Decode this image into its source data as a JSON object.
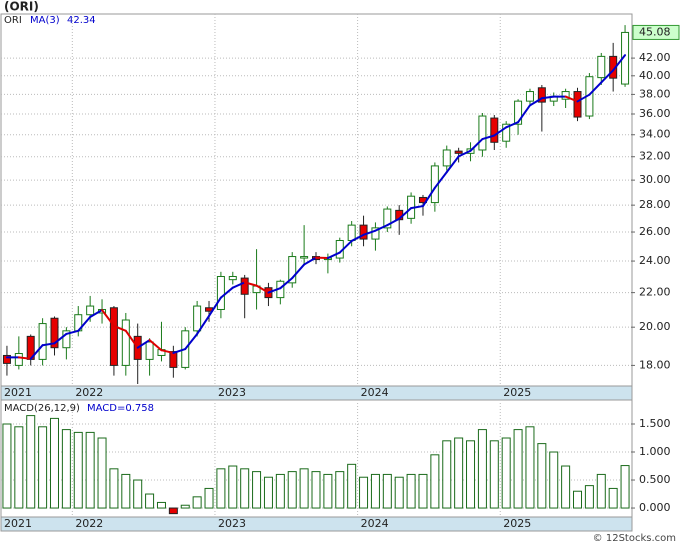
{
  "chart_data": [
    {
      "type": "candlestick",
      "title": "(ORI)",
      "ticker": "ORI",
      "categories": [
        "2021",
        null,
        null,
        null,
        null,
        null,
        "2022",
        null,
        null,
        null,
        null,
        null,
        null,
        null,
        null,
        null,
        null,
        null,
        "2023",
        null,
        null,
        null,
        null,
        null,
        null,
        null,
        null,
        null,
        null,
        null,
        "2024",
        null,
        null,
        null,
        null,
        null,
        null,
        null,
        null,
        null,
        null,
        null,
        "2025",
        null,
        null,
        null,
        null,
        null,
        null,
        null,
        null,
        null,
        null
      ],
      "open": [
        18.5,
        18.0,
        19.5,
        18.3,
        20.5,
        18.9,
        19.8,
        20.7,
        20.8,
        21.1,
        18.0,
        19.5,
        18.3,
        18.5,
        18.7,
        17.9,
        19.8,
        21.1,
        21.0,
        22.8,
        22.9,
        22.0,
        22.3,
        21.7,
        22.6,
        24.2,
        24.3,
        24.1,
        24.2,
        25.4,
        26.5,
        25.5,
        26.3,
        27.6,
        27.0,
        28.6,
        28.2,
        31.2,
        32.5,
        32.3,
        32.6,
        35.6,
        33.4,
        35.0,
        37.3,
        38.7,
        37.3,
        37.5,
        38.3,
        35.8,
        39.8,
        42.2,
        39.1
      ],
      "high": [
        19.0,
        19.5,
        19.6,
        20.5,
        20.6,
        20.0,
        21.2,
        21.8,
        21.6,
        21.2,
        20.8,
        20.2,
        19.4,
        20.3,
        19.0,
        20.0,
        21.5,
        21.5,
        23.3,
        23.3,
        23.1,
        24.8,
        22.6,
        22.8,
        24.6,
        26.5,
        24.6,
        24.5,
        25.6,
        26.8,
        27.2,
        26.7,
        27.9,
        28.0,
        29.0,
        28.8,
        31.5,
        33.0,
        32.8,
        33.3,
        36.1,
        35.9,
        35.3,
        37.5,
        38.6,
        39.0,
        38.2,
        38.6,
        38.7,
        40.3,
        42.6,
        43.8,
        46.0
      ],
      "low": [
        17.5,
        17.8,
        18.0,
        18.0,
        18.5,
        18.3,
        19.5,
        20.3,
        20.2,
        17.5,
        17.5,
        17.1,
        17.5,
        18.2,
        17.4,
        17.8,
        19.5,
        20.3,
        20.5,
        22.5,
        20.5,
        21.0,
        21.2,
        21.3,
        22.3,
        23.8,
        23.8,
        23.2,
        23.9,
        25.0,
        25.0,
        24.7,
        26.0,
        25.8,
        26.6,
        27.2,
        27.5,
        30.8,
        31.5,
        31.6,
        32.0,
        32.6,
        32.8,
        34.0,
        37.0,
        34.3,
        36.8,
        36.6,
        35.3,
        35.5,
        39.0,
        38.3,
        38.8
      ],
      "close": [
        18.1,
        18.6,
        18.3,
        20.2,
        18.9,
        19.8,
        20.7,
        21.2,
        21.0,
        18.0,
        20.4,
        18.3,
        19.2,
        18.8,
        17.9,
        19.8,
        21.2,
        20.9,
        23.0,
        23.0,
        21.9,
        22.4,
        21.7,
        22.7,
        24.3,
        24.3,
        24.1,
        24.2,
        25.4,
        26.5,
        25.5,
        26.3,
        27.7,
        26.9,
        28.7,
        28.2,
        31.2,
        32.6,
        32.3,
        32.7,
        35.8,
        33.3,
        35.0,
        37.3,
        38.3,
        37.2,
        37.8,
        38.3,
        35.7,
        39.9,
        42.2,
        39.74,
        45.08
      ],
      "up_color": "#1a7a1a",
      "down_color": "#e60000",
      "overlay": {
        "name": "MA(3)",
        "color": "#0000cc",
        "down_color": "#dd0000",
        "values": [
          18.4,
          18.4,
          18.33,
          19.03,
          19.13,
          19.63,
          19.8,
          20.57,
          20.97,
          20.07,
          19.8,
          18.9,
          19.3,
          18.77,
          18.63,
          18.83,
          19.63,
          20.63,
          21.7,
          22.3,
          22.63,
          22.43,
          22.0,
          22.27,
          22.9,
          23.77,
          24.23,
          24.2,
          24.57,
          25.37,
          25.8,
          26.1,
          26.5,
          26.97,
          27.77,
          27.93,
          29.37,
          30.67,
          32.03,
          32.53,
          33.6,
          33.93,
          34.7,
          35.2,
          36.87,
          37.6,
          37.77,
          37.77,
          37.27,
          37.97,
          39.27,
          40.61,
          42.34
        ]
      },
      "ylim": [
        17.1,
        47.3
      ],
      "log_scale": true,
      "grid": true,
      "yticks": [
        {
          "value": 18,
          "label": "18.00"
        },
        {
          "value": 20,
          "label": "20.00"
        },
        {
          "value": 22,
          "label": "22.00"
        },
        {
          "value": 24,
          "label": "24.00"
        },
        {
          "value": 26,
          "label": "26.00"
        },
        {
          "value": 28,
          "label": "28.00"
        },
        {
          "value": 30,
          "label": "30.00"
        },
        {
          "value": 32,
          "label": "32.00"
        },
        {
          "value": 34,
          "label": "34.00"
        },
        {
          "value": 36,
          "label": "36.00"
        },
        {
          "value": 38,
          "label": "38.00"
        },
        {
          "value": 40,
          "label": "40.00"
        },
        {
          "value": 42,
          "label": "42.00"
        }
      ]
    },
    {
      "type": "bar",
      "title": "MACD(26,12,9)",
      "value_prefix": "MACD=",
      "categories": [
        "2021",
        null,
        null,
        null,
        null,
        null,
        "2022",
        null,
        null,
        null,
        null,
        null,
        null,
        null,
        null,
        null,
        null,
        null,
        "2023",
        null,
        null,
        null,
        null,
        null,
        null,
        null,
        null,
        null,
        null,
        null,
        "2024",
        null,
        null,
        null,
        null,
        null,
        null,
        null,
        null,
        null,
        null,
        null,
        "2025",
        null,
        null,
        null,
        null,
        null,
        null,
        null,
        null,
        null,
        null
      ],
      "values": [
        1.5,
        1.45,
        1.65,
        1.45,
        1.6,
        1.4,
        1.35,
        1.35,
        1.25,
        0.7,
        0.6,
        0.5,
        0.25,
        0.1,
        -0.1,
        0.05,
        0.2,
        0.35,
        0.7,
        0.75,
        0.7,
        0.65,
        0.55,
        0.6,
        0.65,
        0.7,
        0.65,
        0.6,
        0.65,
        0.78,
        0.55,
        0.6,
        0.6,
        0.55,
        0.6,
        0.6,
        0.95,
        1.2,
        1.25,
        1.2,
        1.4,
        1.2,
        1.25,
        1.4,
        1.45,
        1.15,
        1.0,
        0.75,
        0.3,
        0.4,
        0.6,
        0.35,
        0.758
      ],
      "color": "#1a6a1a",
      "negative_color": "#e60000",
      "ylim": [
        -0.16,
        1.857
      ],
      "grid": true,
      "yticks": [
        {
          "value": 0,
          "label": "0.000"
        },
        {
          "value": 0.5,
          "label": "0.500"
        },
        {
          "value": 1,
          "label": "1.000"
        },
        {
          "value": 1.5,
          "label": "1.500"
        }
      ]
    }
  ],
  "watermark": "© 12Stocks.com"
}
